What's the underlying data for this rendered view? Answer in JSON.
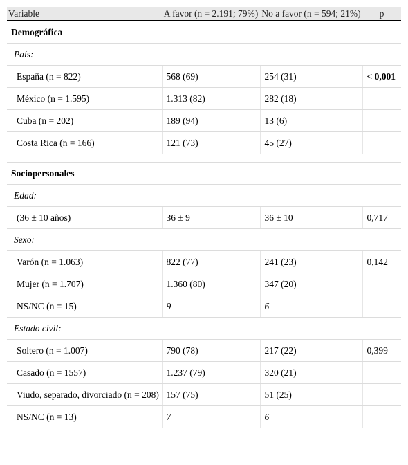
{
  "header": [
    "Variable",
    "A favor (n = 2.191; 79%)",
    "No a favor (n = 594; 21%)",
    "p"
  ],
  "sections": [
    {
      "title": "Demográfica",
      "groups": [
        {
          "label": "País:",
          "rows": [
            {
              "cells": [
                "España (n = 822)",
                "568 (69)",
                "254 (31)",
                "< 0,001"
              ],
              "p_bold": true
            },
            {
              "cells": [
                "México (n = 1.595)",
                "1.313 (82)",
                "282 (18)"
              ]
            },
            {
              "cells": [
                "Cuba (n = 202)",
                "189 (94)",
                "13 (6)"
              ]
            },
            {
              "cells": [
                "Costa Rica (n = 166)",
                "121 (73)",
                "45 (27)"
              ]
            }
          ]
        }
      ]
    },
    {
      "title": "Sociopersonales",
      "groups": [
        {
          "label": "Edad:",
          "rows": [
            {
              "cells": [
                "(36 ± 10 años)",
                "36 ± 9",
                "36 ± 10",
                "0,717"
              ]
            }
          ]
        },
        {
          "label": "Sexo:",
          "rows": [
            {
              "cells": [
                "Varón (n = 1.063)",
                "822 (77)",
                "241 (23)",
                "0,142"
              ]
            },
            {
              "cells": [
                "Mujer (n = 1.707)",
                "1.360 (80)",
                "347 (20)"
              ]
            },
            {
              "cells": [
                "NS/NC (n = 15)",
                "9",
                "6"
              ],
              "italic": true
            }
          ]
        },
        {
          "label": "Estado civil:",
          "rows": [
            {
              "cells": [
                "Soltero (n = 1.007)",
                "790 (78)",
                "217 (22)",
                "0,399"
              ]
            },
            {
              "cells": [
                "Casado (n = 1557)",
                "1.237 (79)",
                "320 (21)"
              ]
            },
            {
              "cells": [
                "Viudo, separado, divorciado (n = 208)",
                "157 (75)",
                "51 (25)"
              ]
            },
            {
              "cells": [
                "NS/NC (n = 13)",
                "7",
                "6"
              ],
              "italic": true
            }
          ]
        }
      ]
    }
  ]
}
